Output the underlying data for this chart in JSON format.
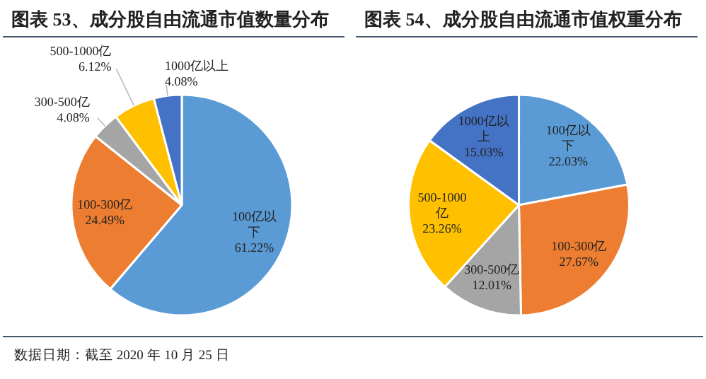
{
  "chart_data": [
    {
      "type": "pie",
      "title": "图表 53、成分股自由流通市值数量分布",
      "categories": [
        "100亿以下",
        "100-300亿",
        "300-500亿",
        "500-1000亿",
        "1000亿以上"
      ],
      "values": [
        61.22,
        24.49,
        4.08,
        6.12,
        4.08
      ],
      "colors": [
        "#5b9bd5",
        "#ed7d31",
        "#a5a5a5",
        "#ffc000",
        "#4472c4"
      ],
      "value_labels": [
        "61.22%",
        "24.49%",
        "4.08%",
        "6.12%",
        "4.08%"
      ],
      "annotations": [
        "数据日期：截至 2020 年 10 月 25 日"
      ]
    },
    {
      "type": "pie",
      "title": "图表 54、成分股自由流通市值权重分布",
      "categories": [
        "100亿以下",
        "100-300亿",
        "300-500亿",
        "500-1000亿",
        "1000亿以上"
      ],
      "values": [
        22.03,
        27.67,
        12.01,
        23.26,
        15.03
      ],
      "colors": [
        "#5b9bd5",
        "#ed7d31",
        "#a5a5a5",
        "#ffc000",
        "#4472c4"
      ],
      "value_labels": [
        "22.03%",
        "27.67%",
        "12.01%",
        "23.26%",
        "15.03%"
      ]
    }
  ]
}
